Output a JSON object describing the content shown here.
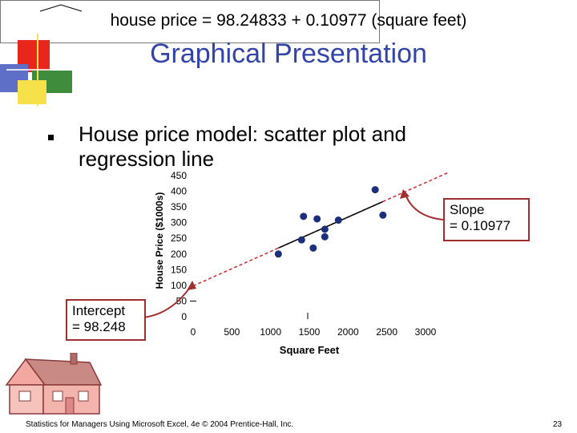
{
  "slide": {
    "title": "Graphical Presentation",
    "bullet": "House price model:  scatter plot and regression line",
    "intercept_label": "Intercept",
    "intercept_value": "= 98.248",
    "slope_label": "Slope",
    "slope_value": "= 0.10977",
    "equation": "house price = 98.24833 + 0.10977 (square feet)",
    "footer": "Statistics for Managers Using Microsoft Excel, 4e © 2004 Prentice-Hall, Inc.",
    "page_number": "23"
  },
  "colors": {
    "title": "#3344a8",
    "points": "#1c2f7a",
    "regression_line": "#000000",
    "extension_line": "#cc2a2a",
    "box_border": "#a03030"
  },
  "chart_data": {
    "type": "scatter",
    "xlabel": "Square Feet",
    "ylabel": "House Price ($1000s)",
    "xlim": [
      0,
      3000
    ],
    "ylim": [
      0,
      450
    ],
    "xticks": [
      0,
      500,
      1000,
      1500,
      2000,
      2500,
      3000
    ],
    "yticks": [
      0,
      50,
      100,
      150,
      200,
      250,
      300,
      350,
      400,
      450
    ],
    "points": [
      {
        "x": 1100,
        "y": 200
      },
      {
        "x": 1400,
        "y": 245
      },
      {
        "x": 1425,
        "y": 320
      },
      {
        "x": 1550,
        "y": 219
      },
      {
        "x": 1600,
        "y": 312
      },
      {
        "x": 1700,
        "y": 255
      },
      {
        "x": 1700,
        "y": 279
      },
      {
        "x": 1875,
        "y": 308
      },
      {
        "x": 2350,
        "y": 405
      },
      {
        "x": 2450,
        "y": 324
      }
    ],
    "regression": {
      "intercept": 98.248,
      "slope": 0.10977,
      "fit_range": [
        1100,
        2450
      ]
    },
    "grid": false
  }
}
